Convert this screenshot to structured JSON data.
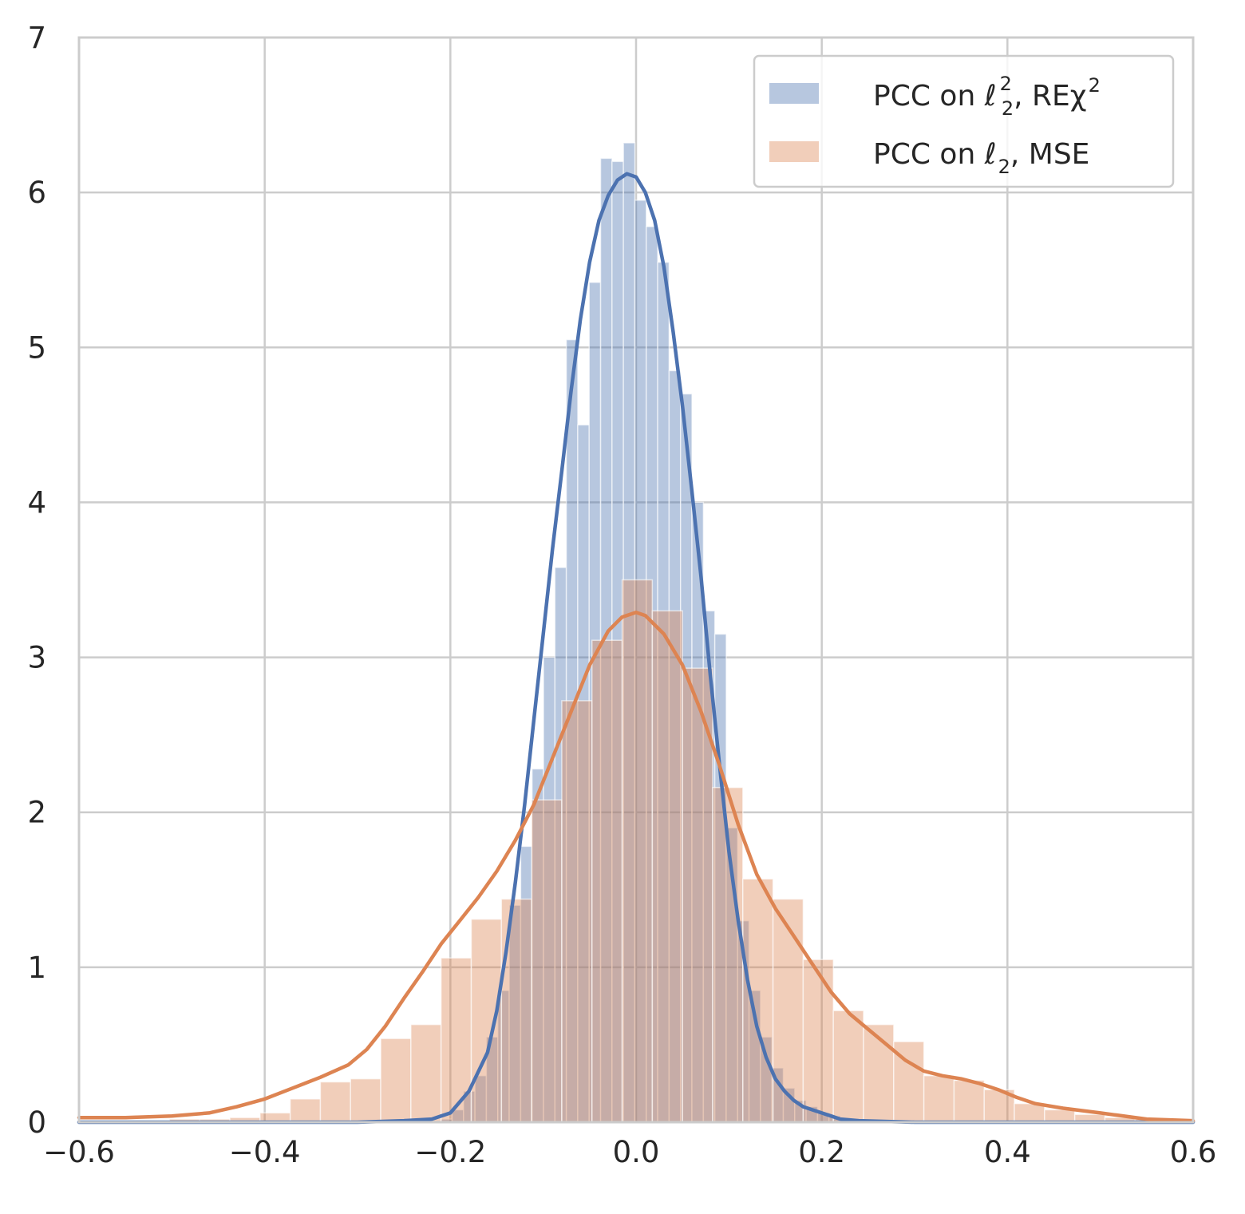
{
  "chart_data": {
    "type": "histogram",
    "title": "",
    "xlabel": "",
    "ylabel": "",
    "xlim": [
      -0.6,
      0.6
    ],
    "ylim": [
      0,
      7
    ],
    "x_ticks": [
      -0.6,
      -0.4,
      -0.2,
      0.0,
      0.2,
      0.4,
      0.6
    ],
    "x_tick_labels": [
      "−0.6",
      "−0.4",
      "−0.2",
      "0.0",
      "0.2",
      "0.4",
      "0.6"
    ],
    "y_ticks": [
      0,
      1,
      2,
      3,
      4,
      5,
      6,
      7
    ],
    "y_tick_labels": [
      "0",
      "1",
      "2",
      "3",
      "4",
      "5",
      "6",
      "7"
    ],
    "grid": true,
    "legend_position": "top-right",
    "series": [
      {
        "name": "PCC on ℓ₂², REχ²",
        "legend_parts": [
          "PCC on ℓ",
          "2",
          "2",
          ", REχ",
          "2"
        ],
        "color": "#4c72b0",
        "hist_color": "#b3c5e0",
        "bin_width": 0.0123,
        "bins": [
          [
            -0.235,
            0.01
          ],
          [
            -0.2227,
            0.01
          ],
          [
            -0.2104,
            0.02
          ],
          [
            -0.1981,
            0.08
          ],
          [
            -0.1858,
            0.2
          ],
          [
            -0.1735,
            0.3
          ],
          [
            -0.1612,
            0.55
          ],
          [
            -0.1489,
            0.85
          ],
          [
            -0.1366,
            1.4
          ],
          [
            -0.1243,
            1.78
          ],
          [
            -0.112,
            2.28
          ],
          [
            -0.0997,
            3.0
          ],
          [
            -0.0874,
            3.58
          ],
          [
            -0.0751,
            5.05
          ],
          [
            -0.0628,
            4.5
          ],
          [
            -0.0505,
            5.42
          ],
          [
            -0.0382,
            6.22
          ],
          [
            -0.0259,
            6.2
          ],
          [
            -0.0136,
            6.32
          ],
          [
            -0.0013,
            5.95
          ],
          [
            0.011,
            5.78
          ],
          [
            0.0233,
            5.55
          ],
          [
            0.0356,
            4.85
          ],
          [
            0.0479,
            4.7
          ],
          [
            0.0602,
            4.0
          ],
          [
            0.0725,
            3.3
          ],
          [
            0.0848,
            3.15
          ],
          [
            0.0971,
            1.9
          ],
          [
            0.1094,
            1.3
          ],
          [
            0.1217,
            0.85
          ],
          [
            0.134,
            0.55
          ],
          [
            0.1463,
            0.35
          ],
          [
            0.1586,
            0.22
          ],
          [
            0.1709,
            0.14
          ],
          [
            0.1832,
            0.1
          ],
          [
            0.1955,
            0.06
          ],
          [
            0.2078,
            0.04
          ],
          [
            0.2201,
            0.02
          ],
          [
            0.2324,
            0.01
          ]
        ],
        "kde_points": [
          [
            -0.6,
            0.0
          ],
          [
            -0.3,
            0.0
          ],
          [
            -0.25,
            0.01
          ],
          [
            -0.22,
            0.02
          ],
          [
            -0.2,
            0.06
          ],
          [
            -0.18,
            0.2
          ],
          [
            -0.16,
            0.45
          ],
          [
            -0.15,
            0.72
          ],
          [
            -0.14,
            1.1
          ],
          [
            -0.13,
            1.55
          ],
          [
            -0.12,
            2.05
          ],
          [
            -0.11,
            2.6
          ],
          [
            -0.1,
            3.15
          ],
          [
            -0.09,
            3.7
          ],
          [
            -0.08,
            4.2
          ],
          [
            -0.07,
            4.72
          ],
          [
            -0.06,
            5.18
          ],
          [
            -0.05,
            5.55
          ],
          [
            -0.04,
            5.82
          ],
          [
            -0.03,
            5.98
          ],
          [
            -0.02,
            6.08
          ],
          [
            -0.01,
            6.12
          ],
          [
            0.0,
            6.1
          ],
          [
            0.01,
            6.0
          ],
          [
            0.02,
            5.82
          ],
          [
            0.03,
            5.52
          ],
          [
            0.04,
            5.1
          ],
          [
            0.05,
            4.62
          ],
          [
            0.06,
            4.08
          ],
          [
            0.07,
            3.52
          ],
          [
            0.08,
            2.88
          ],
          [
            0.09,
            2.3
          ],
          [
            0.1,
            1.75
          ],
          [
            0.11,
            1.3
          ],
          [
            0.12,
            0.92
          ],
          [
            0.13,
            0.62
          ],
          [
            0.14,
            0.42
          ],
          [
            0.15,
            0.28
          ],
          [
            0.16,
            0.2
          ],
          [
            0.17,
            0.14
          ],
          [
            0.18,
            0.1
          ],
          [
            0.19,
            0.08
          ],
          [
            0.2,
            0.06
          ],
          [
            0.21,
            0.04
          ],
          [
            0.22,
            0.02
          ],
          [
            0.24,
            0.01
          ],
          [
            0.3,
            0.0
          ],
          [
            0.6,
            0.0
          ]
        ]
      },
      {
        "name": "PCC on ℓ₂, MSE",
        "legend_parts": [
          "PCC on ℓ",
          "2",
          ", MSE"
        ],
        "color": "#dd8452",
        "hist_color": "#f2cbb5",
        "bin_width": 0.0325,
        "bins": [
          [
            -0.535,
            0.01
          ],
          [
            -0.5025,
            0.02
          ],
          [
            -0.47,
            0.02
          ],
          [
            -0.4375,
            0.03
          ],
          [
            -0.405,
            0.06
          ],
          [
            -0.3725,
            0.15
          ],
          [
            -0.34,
            0.26
          ],
          [
            -0.3075,
            0.28
          ],
          [
            -0.275,
            0.54
          ],
          [
            -0.2425,
            0.63
          ],
          [
            -0.21,
            1.06
          ],
          [
            -0.1775,
            1.31
          ],
          [
            -0.145,
            1.44
          ],
          [
            -0.1125,
            2.08
          ],
          [
            -0.08,
            2.72
          ],
          [
            -0.0475,
            3.11
          ],
          [
            -0.015,
            3.5
          ],
          [
            0.0175,
            3.3
          ],
          [
            0.05,
            2.93
          ],
          [
            0.0825,
            2.16
          ],
          [
            0.115,
            1.57
          ],
          [
            0.1475,
            1.44
          ],
          [
            0.18,
            1.05
          ],
          [
            0.2125,
            0.72
          ],
          [
            0.245,
            0.63
          ],
          [
            0.2775,
            0.52
          ],
          [
            0.31,
            0.3
          ],
          [
            0.3425,
            0.27
          ],
          [
            0.375,
            0.21
          ],
          [
            0.4075,
            0.12
          ],
          [
            0.44,
            0.08
          ],
          [
            0.4725,
            0.05
          ],
          [
            0.505,
            0.03
          ],
          [
            0.5375,
            0.02
          ],
          [
            0.57,
            0.01
          ]
        ],
        "kde_points": [
          [
            -0.6,
            0.03
          ],
          [
            -0.55,
            0.03
          ],
          [
            -0.5,
            0.04
          ],
          [
            -0.46,
            0.06
          ],
          [
            -0.43,
            0.1
          ],
          [
            -0.4,
            0.15
          ],
          [
            -0.37,
            0.22
          ],
          [
            -0.34,
            0.29
          ],
          [
            -0.31,
            0.37
          ],
          [
            -0.29,
            0.47
          ],
          [
            -0.27,
            0.62
          ],
          [
            -0.25,
            0.8
          ],
          [
            -0.23,
            0.97
          ],
          [
            -0.21,
            1.15
          ],
          [
            -0.19,
            1.3
          ],
          [
            -0.17,
            1.45
          ],
          [
            -0.15,
            1.62
          ],
          [
            -0.13,
            1.82
          ],
          [
            -0.11,
            2.05
          ],
          [
            -0.09,
            2.35
          ],
          [
            -0.07,
            2.65
          ],
          [
            -0.05,
            2.95
          ],
          [
            -0.03,
            3.17
          ],
          [
            -0.015,
            3.26
          ],
          [
            0.0,
            3.29
          ],
          [
            0.01,
            3.27
          ],
          [
            0.03,
            3.15
          ],
          [
            0.05,
            2.95
          ],
          [
            0.07,
            2.65
          ],
          [
            0.09,
            2.3
          ],
          [
            0.11,
            1.92
          ],
          [
            0.13,
            1.6
          ],
          [
            0.15,
            1.38
          ],
          [
            0.17,
            1.2
          ],
          [
            0.19,
            1.02
          ],
          [
            0.21,
            0.84
          ],
          [
            0.23,
            0.7
          ],
          [
            0.25,
            0.6
          ],
          [
            0.27,
            0.5
          ],
          [
            0.29,
            0.4
          ],
          [
            0.31,
            0.33
          ],
          [
            0.33,
            0.3
          ],
          [
            0.35,
            0.28
          ],
          [
            0.37,
            0.25
          ],
          [
            0.39,
            0.21
          ],
          [
            0.41,
            0.16
          ],
          [
            0.43,
            0.12
          ],
          [
            0.46,
            0.09
          ],
          [
            0.5,
            0.06
          ],
          [
            0.55,
            0.02
          ],
          [
            0.6,
            0.01
          ]
        ]
      }
    ]
  }
}
